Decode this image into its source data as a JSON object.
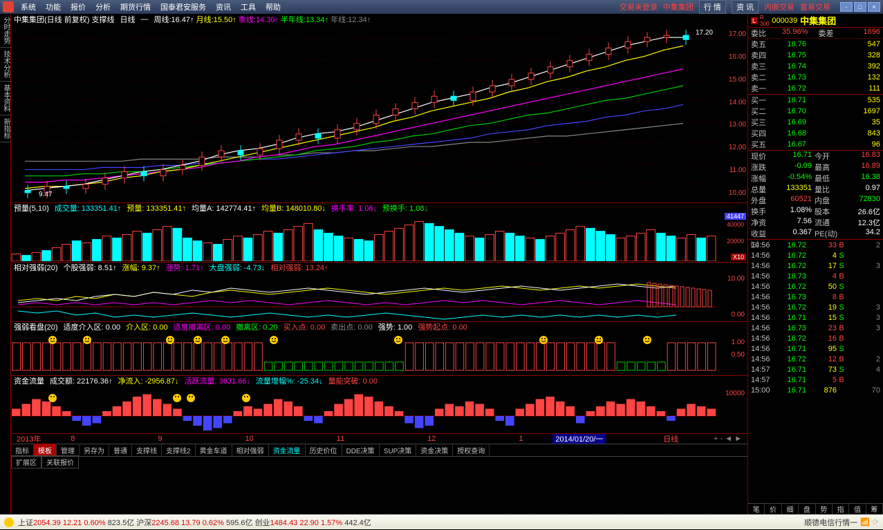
{
  "menu": [
    "系统",
    "功能",
    "报价",
    "分析",
    "期货行情",
    "国泰君安服务",
    "资讯",
    "工具",
    "帮助"
  ],
  "top_right": {
    "not_login": "交易未登录",
    "stock": "中集集团",
    "b1": "行 情",
    "b2": "资 讯",
    "b3": "内嵌交易",
    "b4": "富易交易"
  },
  "left_tabs": [
    "分时走势",
    "技术分析",
    "基本资料",
    "新指标"
  ],
  "chart": {
    "title": "中集集团(日线 前复权) 支撑线",
    "type": "日线",
    "ma": [
      {
        "lbl": "周线:",
        "v": "16.47",
        "c": "#fff"
      },
      {
        "lbl": "月线:",
        "v": "15.50",
        "c": "#ff0"
      },
      {
        "lbl": "季线:",
        "v": "14.30",
        "c": "#f0f"
      },
      {
        "lbl": "半年线:",
        "v": "13.34",
        "c": "#0f0"
      },
      {
        "lbl": "年线:",
        "v": "12.34",
        "c": "#888"
      }
    ],
    "yticks": [
      "17.00",
      "16.00",
      "15.00",
      "14.00",
      "13.00",
      "12.00",
      "11.00",
      "10.00"
    ],
    "peak": "17.20",
    "low": "9.47",
    "candles_open": [
      9.6,
      9.5,
      9.8,
      9.7,
      9.9,
      10.2,
      10.5,
      10.3,
      10.6,
      10.8,
      11.2,
      11.5,
      11.3,
      11.6,
      12.0,
      12.3,
      12.1,
      12.5,
      12.8,
      13.2,
      13.5,
      13.8,
      14.1,
      13.9,
      14.3,
      14.6,
      14.9,
      15.2,
      15.5,
      15.8,
      16.1,
      16.4,
      16.7,
      16.9,
      17.0
    ],
    "candles_close": [
      9.5,
      9.8,
      9.7,
      9.9,
      10.2,
      10.5,
      10.3,
      10.6,
      10.8,
      11.2,
      11.5,
      11.3,
      11.6,
      12.0,
      12.3,
      12.1,
      12.5,
      12.8,
      13.2,
      13.5,
      13.8,
      14.1,
      13.9,
      14.3,
      14.6,
      14.9,
      15.2,
      15.5,
      15.8,
      16.1,
      16.4,
      16.7,
      16.9,
      17.0,
      16.8
    ],
    "ma_white": [
      9.6,
      9.7,
      9.8,
      9.9,
      10.1,
      10.3,
      10.5,
      10.6,
      10.8,
      11.0,
      11.3,
      11.5,
      11.6,
      11.8,
      12.1,
      12.3,
      12.4,
      12.6,
      12.9,
      13.2,
      13.5,
      13.8,
      14.0,
      14.2,
      14.5,
      14.7,
      15.0,
      15.3,
      15.6,
      15.9,
      16.2,
      16.5,
      16.7,
      16.9,
      16.9
    ],
    "ma_yellow": [
      9.7,
      9.8,
      9.8,
      9.9,
      10.0,
      10.2,
      10.3,
      10.5,
      10.6,
      10.8,
      11.0,
      11.2,
      11.4,
      11.6,
      11.8,
      12.0,
      12.2,
      12.4,
      12.6,
      12.9,
      13.1,
      13.4,
      13.6,
      13.8,
      14.0,
      14.3,
      14.5,
      14.8,
      15.0,
      15.3,
      15.5,
      15.8,
      16.0,
      16.3,
      16.5
    ],
    "ma_magenta": [
      10.0,
      10.0,
      10.1,
      10.1,
      10.2,
      10.3,
      10.4,
      10.5,
      10.6,
      10.7,
      10.9,
      11.0,
      11.2,
      11.3,
      11.5,
      11.7,
      11.8,
      12.0,
      12.2,
      12.4,
      12.6,
      12.8,
      13.0,
      13.2,
      13.4,
      13.6,
      13.8,
      14.0,
      14.2,
      14.4,
      14.6,
      14.8,
      15.0,
      15.2,
      15.4
    ],
    "ma_green": [
      10.3,
      10.3,
      10.3,
      10.4,
      10.4,
      10.5,
      10.5,
      10.6,
      10.7,
      10.8,
      10.9,
      11.0,
      11.1,
      11.2,
      11.3,
      11.5,
      11.6,
      11.7,
      11.9,
      12.0,
      12.2,
      12.3,
      12.5,
      12.7,
      12.8,
      13.0,
      13.2,
      13.3,
      13.5,
      13.7,
      13.9,
      14.0,
      14.2,
      14.4,
      14.6
    ],
    "ma_blue": [
      10.6,
      10.6,
      10.6,
      10.6,
      10.7,
      10.7,
      10.7,
      10.8,
      10.8,
      10.9,
      10.9,
      11.0,
      11.1,
      11.1,
      11.2,
      11.3,
      11.4,
      11.5,
      11.6,
      11.7,
      11.8,
      11.9,
      12.0,
      12.1,
      12.3,
      12.4,
      12.5,
      12.7,
      12.8,
      12.9,
      13.1,
      13.2,
      13.4,
      13.5,
      13.7
    ],
    "ma_gray": [
      11.0,
      11.0,
      11.0,
      11.0,
      11.0,
      11.0,
      11.1,
      11.1,
      11.1,
      11.1,
      11.2,
      11.2,
      11.2,
      11.3,
      11.3,
      11.4,
      11.4,
      11.5,
      11.5,
      11.6,
      11.7,
      11.7,
      11.8,
      11.9,
      11.9,
      12.0,
      12.1,
      12.2,
      12.2,
      12.3,
      12.4,
      12.5,
      12.6,
      12.7,
      12.8
    ]
  },
  "vol": {
    "header": [
      {
        "t": "预量(5,10)",
        "c": "#fff"
      },
      {
        "t": "成交量: 133351.41↑",
        "c": "#0ff"
      },
      {
        "t": "预量: 133351.41↑",
        "c": "#ff0"
      },
      {
        "t": "均量A: 142774.41↑",
        "c": "#fff"
      },
      {
        "t": "均量B: 148010.80↓",
        "c": "#ff0"
      },
      {
        "t": "换手率: 1.08↓",
        "c": "#f0f"
      },
      {
        "t": "预换手: 1.08↓",
        "c": "#0f0"
      }
    ],
    "bars": [
      15,
      12,
      18,
      22,
      28,
      35,
      42,
      38,
      45,
      52,
      48,
      55,
      62,
      58,
      65,
      72,
      68,
      48,
      42,
      38,
      35,
      45,
      52,
      48,
      55,
      62,
      58,
      65,
      72,
      78,
      65,
      58,
      52,
      48,
      45,
      42,
      55,
      62,
      68,
      75,
      82,
      78,
      72,
      65,
      58,
      52,
      48,
      55,
      62,
      58,
      52,
      48,
      45,
      52,
      58,
      65,
      72,
      68,
      62,
      55,
      48,
      52,
      58,
      65,
      58,
      52,
      48,
      55,
      48,
      52
    ],
    "colors": [
      "r",
      "g",
      "r",
      "g",
      "r",
      "r",
      "g",
      "r",
      "g",
      "r",
      "g",
      "r",
      "r",
      "g",
      "r",
      "r",
      "g",
      "g",
      "g",
      "r",
      "g",
      "r",
      "r",
      "g",
      "r",
      "r",
      "g",
      "r",
      "r",
      "r",
      "g",
      "g",
      "g",
      "r",
      "g",
      "g",
      "r",
      "r",
      "r",
      "r",
      "r",
      "g",
      "g",
      "g",
      "g",
      "r",
      "g",
      "r",
      "r",
      "g",
      "g",
      "r",
      "g",
      "r",
      "r",
      "r",
      "r",
      "g",
      "g",
      "g",
      "r",
      "r",
      "r",
      "r",
      "g",
      "g",
      "r",
      "r",
      "g",
      "r"
    ],
    "tag1": "41447",
    "tag2": "40000",
    "tag3": "20000",
    "x10": "X10"
  },
  "rs": {
    "header": [
      {
        "t": "相对强弱(20)",
        "c": "#fff"
      },
      {
        "t": "个股强弱: 8.51↑",
        "c": "#fff"
      },
      {
        "t": "涨幅: 9.37↑",
        "c": "#ff0"
      },
      {
        "t": "涨势: 1.71↑",
        "c": "#f0f"
      },
      {
        "t": "大盘强弱: -4.73↓",
        "c": "#0ff"
      },
      {
        "t": "相对强弱: 13.24↑",
        "c": "#f44"
      }
    ],
    "ytick": "10.00",
    "ytick2": "0.00",
    "white": [
      2,
      3,
      4,
      3,
      5,
      6,
      5,
      7,
      6,
      8,
      7,
      9,
      8,
      7,
      8,
      9,
      8,
      7,
      6,
      7,
      8,
      9,
      8,
      7,
      8,
      9,
      10,
      9,
      8,
      9,
      10,
      11,
      10,
      9,
      10
    ],
    "yellow": [
      3,
      4,
      3,
      5,
      4,
      6,
      5,
      7,
      6,
      5,
      7,
      8,
      7,
      6,
      7,
      8,
      9,
      8,
      7,
      6,
      7,
      8,
      9,
      8,
      9,
      10,
      9,
      8,
      9,
      10,
      9,
      10,
      11,
      10,
      9
    ],
    "magenta": [
      1,
      2,
      1,
      2,
      1,
      2,
      1,
      2,
      1,
      2,
      3,
      2,
      3,
      2,
      1,
      2,
      3,
      2,
      1,
      2,
      1,
      2,
      3,
      2,
      3,
      2,
      1,
      2,
      3,
      2,
      1,
      2,
      3,
      2,
      1
    ],
    "cyan": [
      -2,
      -3,
      -2,
      -4,
      -3,
      -5,
      -4,
      -5,
      -4,
      -3,
      -4,
      -5,
      -4,
      -3,
      -4,
      -5,
      -4,
      -5,
      -4,
      -3,
      -4,
      -5,
      -6,
      -5,
      -4,
      -5,
      -4,
      -5,
      -4,
      -5,
      -4,
      -5,
      -4,
      -5,
      -4
    ]
  },
  "sig": {
    "header": [
      {
        "t": "强弱看盘(20)",
        "c": "#fff"
      },
      {
        "t": "适度介入区: 0.00",
        "c": "#fff"
      },
      {
        "t": "介入区: 0.00",
        "c": "#ff0"
      },
      {
        "t": "适度撤离区: 0.00",
        "c": "#f0f"
      },
      {
        "t": "撤离区: 0.20",
        "c": "#0f0"
      },
      {
        "t": "买入点: 0.00",
        "c": "#f44"
      },
      {
        "t": "卖出点: 0.00",
        "c": "#888"
      },
      {
        "t": "强势: 1.00",
        "c": "#fff"
      },
      {
        "t": "强势起点: 0.00",
        "c": "#f44"
      }
    ],
    "yticks": [
      "1.00",
      "0.50"
    ],
    "bars": [
      1,
      1,
      1,
      1,
      1,
      1,
      1,
      1,
      1,
      1,
      1,
      1,
      1,
      1,
      1,
      1,
      1,
      1,
      1,
      1,
      1,
      1,
      1,
      1,
      1,
      0.3,
      0.3,
      0.3,
      0.3,
      0.3,
      0.3,
      0.3,
      0.3,
      0.3,
      0.3,
      0.3,
      0.3,
      0.3,
      0.3,
      1,
      1,
      1,
      1,
      1,
      1,
      1,
      1,
      1,
      1,
      1,
      1,
      1,
      1,
      1,
      1,
      1,
      1,
      1,
      1,
      1,
      0.3,
      0.3,
      0.3,
      0.3,
      0.3,
      1,
      1,
      1,
      1,
      1
    ],
    "bcolors": [
      "r",
      "r",
      "r",
      "r",
      "r",
      "r",
      "r",
      "r",
      "r",
      "r",
      "r",
      "r",
      "r",
      "r",
      "r",
      "r",
      "r",
      "r",
      "r",
      "r",
      "r",
      "r",
      "r",
      "r",
      "r",
      "g",
      "g",
      "g",
      "g",
      "g",
      "g",
      "g",
      "g",
      "g",
      "g",
      "g",
      "g",
      "g",
      "g",
      "r",
      "r",
      "r",
      "r",
      "r",
      "r",
      "r",
      "r",
      "r",
      "r",
      "r",
      "r",
      "r",
      "r",
      "r",
      "r",
      "r",
      "r",
      "r",
      "r",
      "r",
      "g",
      "g",
      "g",
      "g",
      "g",
      "r",
      "r",
      "r",
      "r",
      "r"
    ]
  },
  "flow": {
    "header": [
      {
        "t": "资金流量",
        "c": "#fff"
      },
      {
        "t": "成交额: 22176.36↑",
        "c": "#fff"
      },
      {
        "t": "净流入: -2956.87↓",
        "c": "#ff0"
      },
      {
        "t": "活跃流量: 3631.66↓",
        "c": "#f0f"
      },
      {
        "t": "流量增幅%: -25.34↓",
        "c": "#0ff"
      },
      {
        "t": "量能突破: 0.00",
        "c": "#f44"
      }
    ],
    "ytick": "10000",
    "bars": [
      30,
      50,
      70,
      60,
      40,
      20,
      -20,
      -40,
      -30,
      20,
      40,
      60,
      80,
      90,
      70,
      50,
      30,
      -20,
      -40,
      -60,
      -50,
      -30,
      20,
      40,
      30,
      50,
      70,
      60,
      40,
      -20,
      -30,
      20,
      50,
      70,
      90,
      80,
      60,
      40,
      20,
      -30,
      -50,
      -40,
      30,
      50,
      40,
      60,
      50,
      30,
      -20,
      -40,
      30,
      50,
      70,
      80,
      60,
      40,
      -30,
      20,
      40,
      60,
      50,
      70,
      60,
      40,
      20,
      -20,
      30,
      50,
      40,
      30
    ]
  },
  "time_axis": {
    "y": "2013年",
    "m": [
      "8",
      "9",
      "10",
      "11",
      "12",
      "1"
    ],
    "date": "2014/01/20/一",
    "kind": "日线"
  },
  "btm_tabs": [
    "指标",
    "模板",
    "管理",
    "另存为",
    "普通",
    "支撑线",
    "支撑线2",
    "黄金车道",
    "相对强弱",
    "资金流量",
    "历史价位",
    "DDE决策",
    "SUP决策",
    "资金决策",
    "授权查询"
  ],
  "btm_tabs_active": 1,
  "btm_bar": [
    "扩展区",
    "关联报价"
  ],
  "stock": {
    "code": "000039",
    "name": "中集集团",
    "badge": "L"
  },
  "ratio": {
    "lbl1": "委比",
    "v1": "35.96%",
    "lbl2": "委差",
    "v2": "1696"
  },
  "asks": [
    {
      "l": "卖五",
      "p": "16.76",
      "q": "547"
    },
    {
      "l": "卖四",
      "p": "16.75",
      "q": "328"
    },
    {
      "l": "卖三",
      "p": "16.74",
      "q": "392"
    },
    {
      "l": "卖二",
      "p": "16.73",
      "q": "132"
    },
    {
      "l": "卖一",
      "p": "16.72",
      "q": "111"
    }
  ],
  "bids": [
    {
      "l": "买一",
      "p": "16.71",
      "q": "535"
    },
    {
      "l": "买二",
      "p": "16.70",
      "q": "1697"
    },
    {
      "l": "买三",
      "p": "16.69",
      "q": "35"
    },
    {
      "l": "买四",
      "p": "16.68",
      "q": "843"
    },
    {
      "l": "买五",
      "p": "16.67",
      "q": "96"
    }
  ],
  "quote": [
    {
      "c1": "现价",
      "v1": "16.71",
      "v1c": "g",
      "c2": "今开",
      "v2": "16.83",
      "v2c": "r"
    },
    {
      "c1": "涨跌",
      "v1": "-0.09",
      "v1c": "g",
      "c2": "最高",
      "v2": "16.89",
      "v2c": "r"
    },
    {
      "c1": "涨幅",
      "v1": "-0.54%",
      "v1c": "g",
      "c2": "最低",
      "v2": "16.38",
      "v2c": "g"
    },
    {
      "c1": "总量",
      "v1": "133351",
      "v1c": "y",
      "c2": "量比",
      "v2": "0.97",
      "v2c": "w"
    },
    {
      "c1": "外盘",
      "v1": "60521",
      "v1c": "r",
      "c2": "内盘",
      "v2": "72830",
      "v2c": "g"
    },
    {
      "c1": "换手",
      "v1": "1.08%",
      "v1c": "w",
      "c2": "股本",
      "v2": "26.6亿",
      "v2c": "w"
    },
    {
      "c1": "净资",
      "v1": "7.56",
      "v1c": "w",
      "c2": "流通",
      "v2": "12.3亿",
      "v2c": "w"
    },
    {
      "c1": "收益㈢",
      "v1": "0.367",
      "v1c": "w",
      "c2": "PE(动)",
      "v2": "34.2",
      "v2c": "w"
    }
  ],
  "ticks": [
    {
      "t": "14:56",
      "p": "16.72",
      "pc": "g",
      "q": "33",
      "bs": "B",
      "bc": "r",
      "n": "2"
    },
    {
      "t": "14:56",
      "p": "16.72",
      "pc": "g",
      "q": "4",
      "bs": "S",
      "bc": "g",
      "n": ""
    },
    {
      "t": "14:56",
      "p": "16.72",
      "pc": "g",
      "q": "17",
      "bs": "S",
      "bc": "g",
      "n": "3"
    },
    {
      "t": "14:56",
      "p": "16.73",
      "pc": "g",
      "q": "4",
      "bs": "B",
      "bc": "r",
      "n": ""
    },
    {
      "t": "14:56",
      "p": "16.72",
      "pc": "g",
      "q": "50",
      "bs": "S",
      "bc": "g",
      "n": ""
    },
    {
      "t": "14:56",
      "p": "16.73",
      "pc": "g",
      "q": "8",
      "bs": "B",
      "bc": "r",
      "n": ""
    },
    {
      "t": "14:56",
      "p": "16.72",
      "pc": "g",
      "q": "19",
      "bs": "S",
      "bc": "g",
      "n": "3"
    },
    {
      "t": "14:56",
      "p": "16.71",
      "pc": "g",
      "q": "15",
      "bs": "S",
      "bc": "g",
      "n": "3"
    },
    {
      "t": "14:56",
      "p": "16.73",
      "pc": "g",
      "q": "23",
      "bs": "B",
      "bc": "r",
      "n": "3"
    },
    {
      "t": "14:56",
      "p": "16.72",
      "pc": "g",
      "q": "16",
      "bs": "B",
      "bc": "r",
      "n": ""
    },
    {
      "t": "14:56",
      "p": "16.71",
      "pc": "g",
      "q": "95",
      "bs": "S",
      "bc": "g",
      "n": ""
    },
    {
      "t": "14:56",
      "p": "16.72",
      "pc": "g",
      "q": "12",
      "bs": "B",
      "bc": "r",
      "n": "2"
    },
    {
      "t": "14:57",
      "p": "16.71",
      "pc": "g",
      "q": "73",
      "bs": "S",
      "bc": "g",
      "n": "4"
    },
    {
      "t": "14:57",
      "p": "16.71",
      "pc": "g",
      "q": "5",
      "bs": "B",
      "bc": "r",
      "n": ""
    },
    {
      "t": "15:00",
      "p": "16.71",
      "pc": "g",
      "q": "876",
      "bs": "",
      "bc": "",
      "n": "70"
    }
  ],
  "r_btm": [
    "笔",
    "价",
    "细",
    "盘",
    "势",
    "指",
    "值",
    "筹"
  ],
  "status": {
    "items": [
      {
        "l": "上证",
        "v": "2054.39",
        "d": "12.21",
        "p": "0.60%",
        "a": "823.5亿"
      },
      {
        "l": "沪深",
        "v": "2245.68",
        "d": "13.79",
        "p": "0.62%",
        "a": "595.6亿"
      },
      {
        "l": "创业",
        "v": "1484.43",
        "d": "22.90",
        "p": "1.57%",
        "a": "442.4亿"
      }
    ],
    "conn": "顺德电信行情一"
  }
}
